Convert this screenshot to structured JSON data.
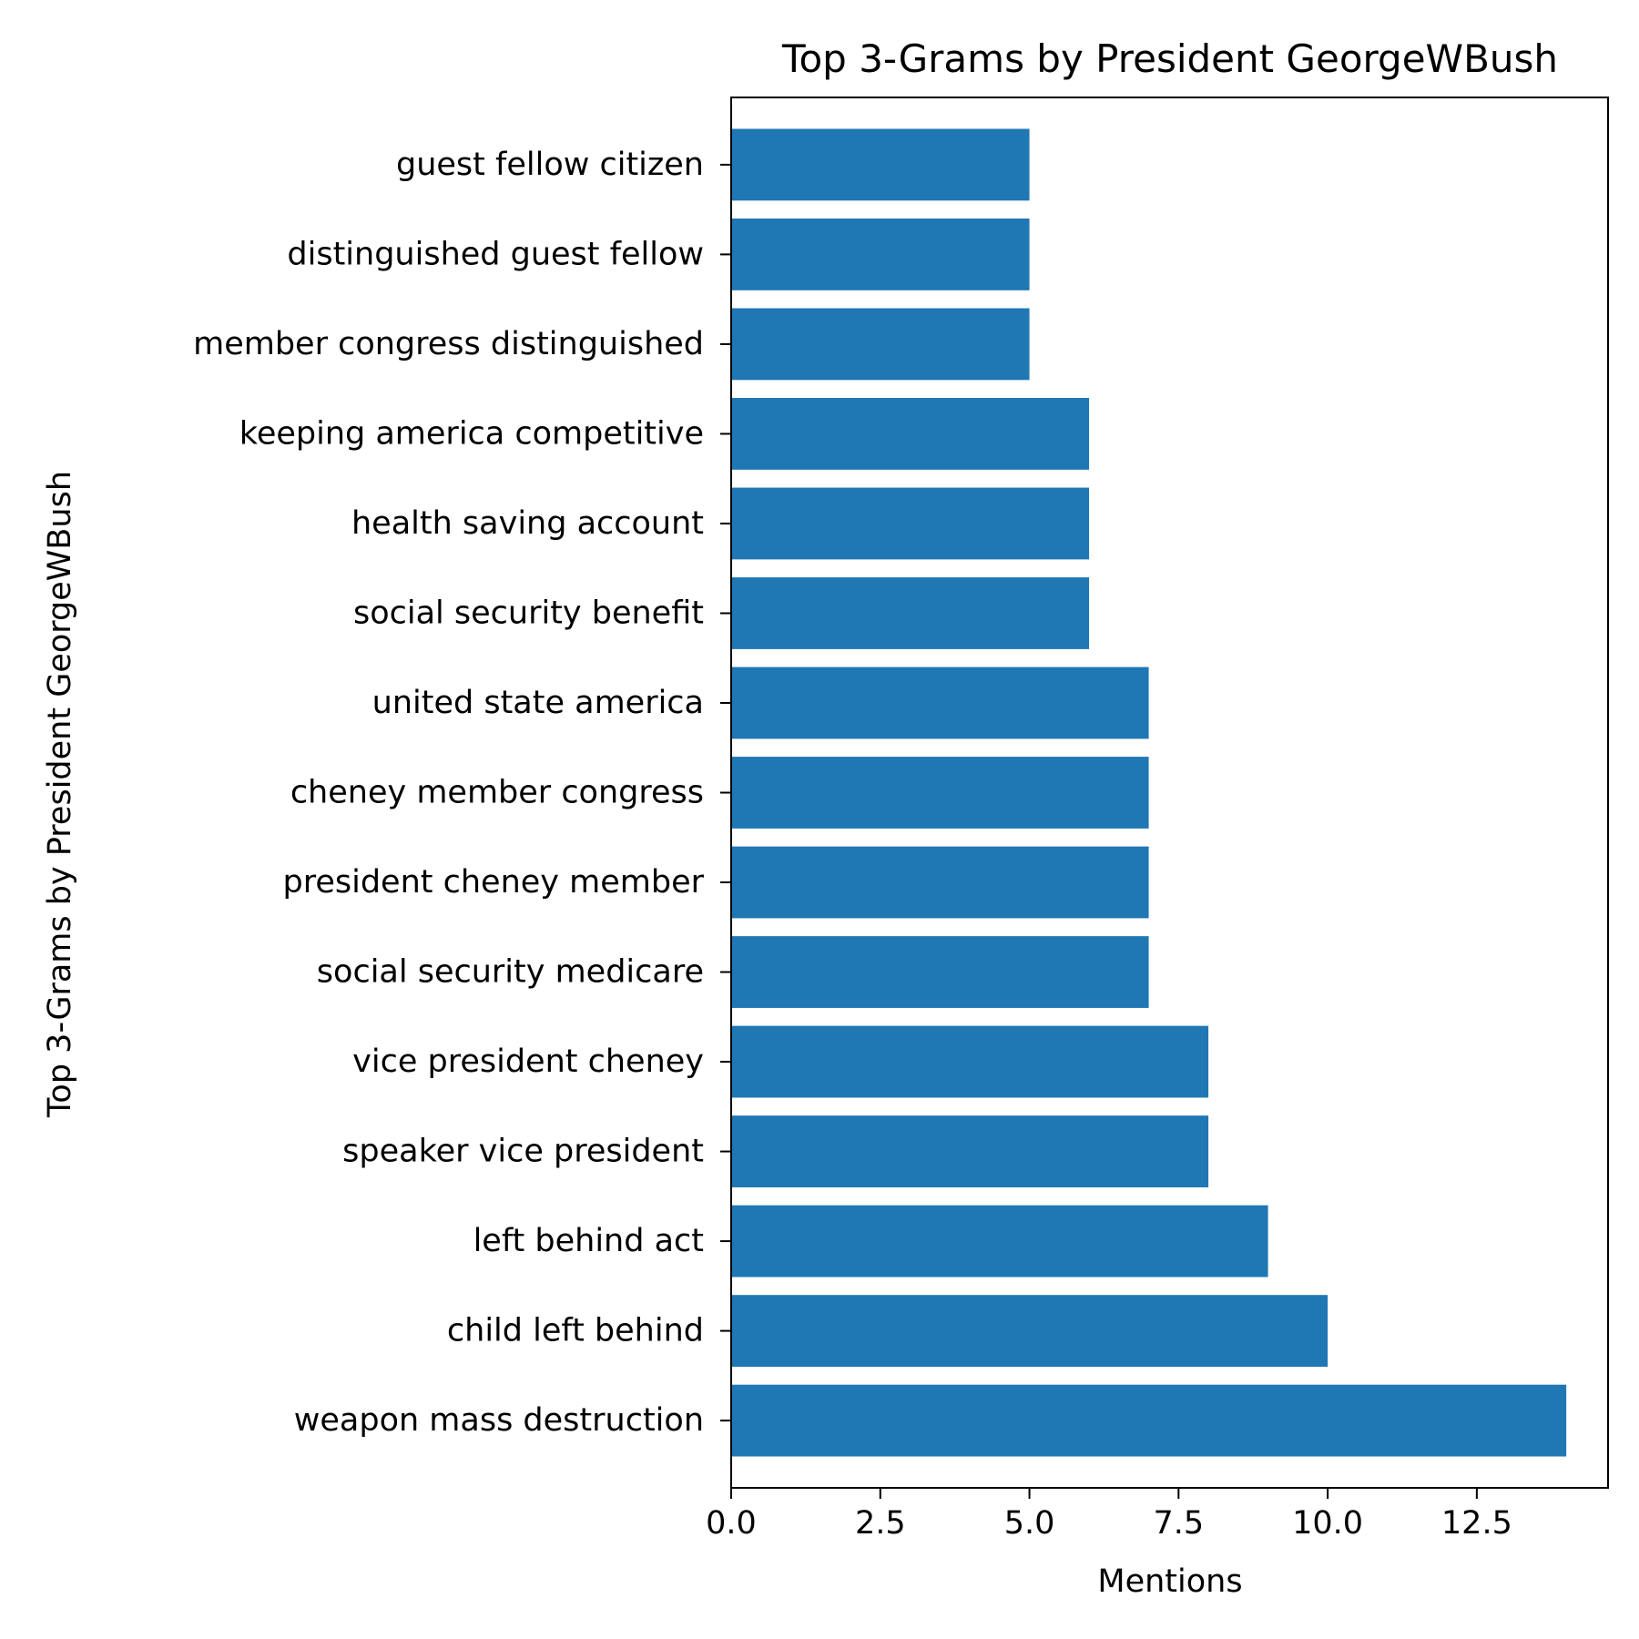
{
  "chart_data": {
    "type": "bar",
    "orientation": "horizontal",
    "title": "Top 3-Grams by President GeorgeWBush",
    "xlabel": "Mentions",
    "ylabel": "Top 3-Grams by President GeorgeWBush",
    "categories": [
      "weapon mass destruction",
      "child left behind",
      "left behind act",
      "speaker vice president",
      "vice president cheney",
      "social security medicare",
      "president cheney member",
      "cheney member congress",
      "united state america",
      "social security benefit",
      "health saving account",
      "keeping america competitive",
      "member congress distinguished",
      "distinguished guest fellow",
      "guest fellow citizen"
    ],
    "values": [
      14,
      10,
      9,
      8,
      8,
      7,
      7,
      7,
      7,
      6,
      6,
      6,
      5,
      5,
      5
    ],
    "xlim": [
      0,
      14.7
    ],
    "xticks": [
      0,
      2.5,
      5,
      7.5,
      10,
      12.5
    ],
    "xtick_labels": [
      "0.0",
      "2.5",
      "5.0",
      "7.5",
      "10.0",
      "12.5"
    ],
    "grid": false,
    "legend": "none",
    "bar_color": "#1f77b4"
  }
}
